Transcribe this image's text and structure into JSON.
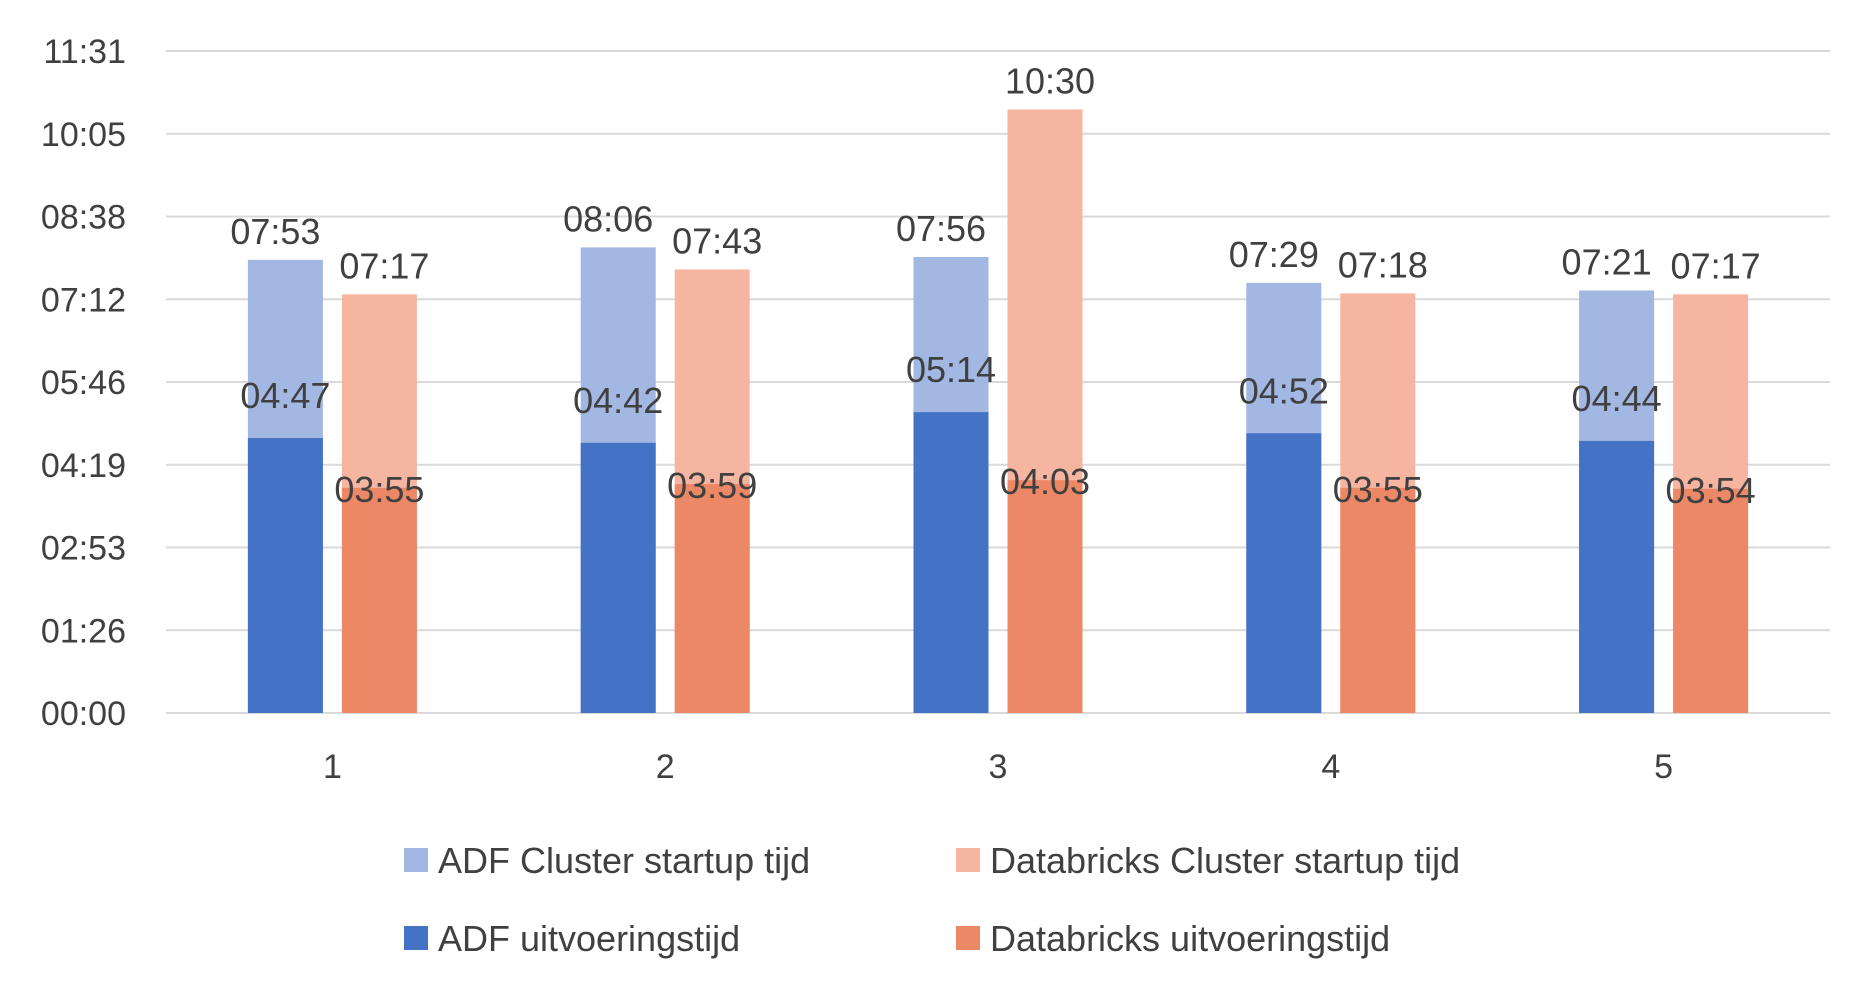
{
  "chart_data": {
    "type": "bar",
    "stacking": "overlaid",
    "categories": [
      "1",
      "2",
      "3",
      "4",
      "5"
    ],
    "y_tick_labels": [
      "00:00",
      "01:26",
      "02:53",
      "04:19",
      "05:46",
      "07:12",
      "08:38",
      "10:05",
      "11:31"
    ],
    "ylim_minutes": [
      0,
      691
    ],
    "grid": true,
    "legend_position": "bottom",
    "groups": [
      {
        "name": "ADF",
        "total_series": {
          "name": "ADF Cluster startup tijd",
          "color": "#a2b7e1"
        },
        "exec_series": {
          "name": "ADF uitvoeringstijd",
          "color": "#4472c4"
        },
        "total_values_sec": [
          473,
          486,
          476,
          449,
          441
        ],
        "total_labels": [
          "07:53",
          "08:06",
          "07:56",
          "07:29",
          "07:21"
        ],
        "exec_values_sec": [
          287,
          282,
          314,
          292,
          284
        ],
        "exec_labels": [
          "04:47",
          "04:42",
          "05:14",
          "04:52",
          "04:44"
        ]
      },
      {
        "name": "Databricks",
        "total_series": {
          "name": "Databricks Cluster startup tijd",
          "color": "#f6b5a0"
        },
        "exec_series": {
          "name": "Databricks uitvoeringstijd",
          "color": "#ed8866"
        },
        "total_values_sec": [
          437,
          463,
          630,
          438,
          437
        ],
        "total_labels": [
          "07:17",
          "07:43",
          "10:30",
          "07:18",
          "07:17"
        ],
        "exec_values_sec": [
          235,
          239,
          243,
          235,
          234
        ],
        "exec_labels": [
          "03:55",
          "03:59",
          "04:03",
          "03:55",
          "03:54"
        ]
      }
    ],
    "legend": [
      {
        "label": "ADF Cluster startup tijd",
        "color": "#a2b7e1"
      },
      {
        "label": "Databricks Cluster startup tijd",
        "color": "#f6b5a0"
      },
      {
        "label": "ADF uitvoeringstijd",
        "color": "#4472c4"
      },
      {
        "label": "Databricks uitvoeringstijd",
        "color": "#ed8866"
      }
    ]
  }
}
